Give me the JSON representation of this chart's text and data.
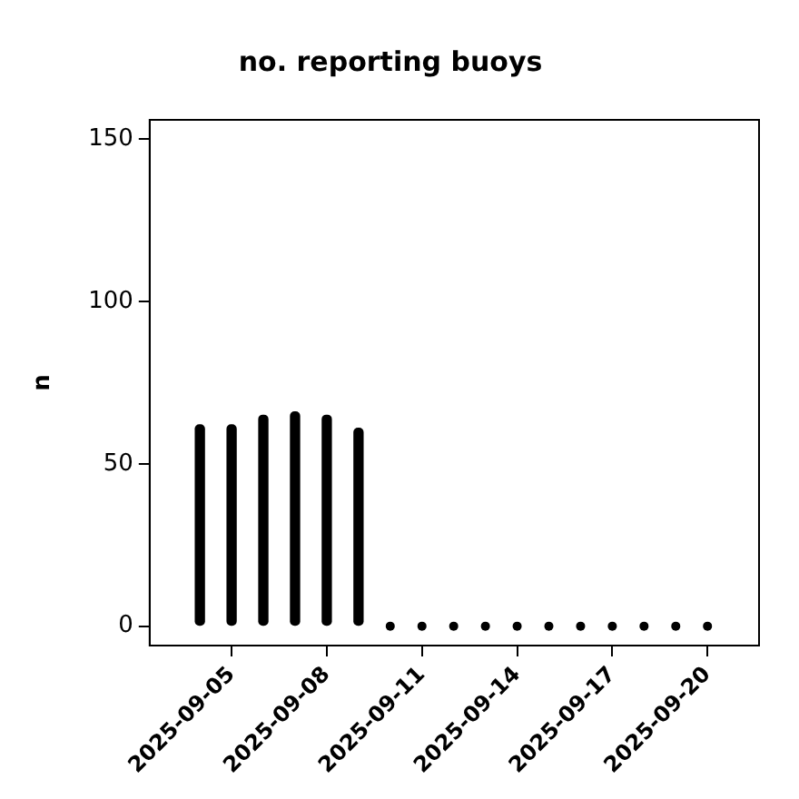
{
  "chart_data": {
    "type": "bar",
    "title": "no. reporting buoys",
    "ylabel": "n",
    "series": [
      {
        "color": "#000000",
        "x": [
          "2025-09-04",
          "2025-09-05",
          "2025-09-06",
          "2025-09-07",
          "2025-09-08",
          "2025-09-09"
        ],
        "values": [
          62,
          62,
          65,
          66,
          65,
          61
        ]
      },
      {
        "type": "scatter",
        "color": "#000000",
        "marker": "circle",
        "x": [
          "2025-09-10",
          "2025-09-11",
          "2025-09-12",
          "2025-09-13",
          "2025-09-14",
          "2025-09-15",
          "2025-09-16",
          "2025-09-17",
          "2025-09-18",
          "2025-09-19",
          "2025-09-20"
        ],
        "values": [
          0,
          0,
          0,
          0,
          0,
          0,
          0,
          0,
          0,
          0,
          0
        ]
      }
    ],
    "xlim": [
      "2025-09-02T10:00",
      "2025-09-21T15:00"
    ],
    "xticks": [
      {
        "value": "2025-09-05",
        "label": "2025-09-05"
      },
      {
        "value": "2025-09-08",
        "label": "2025-09-08"
      },
      {
        "value": "2025-09-11",
        "label": "2025-09-11"
      },
      {
        "value": "2025-09-14",
        "label": "2025-09-14"
      },
      {
        "value": "2025-09-17",
        "label": "2025-09-17"
      },
      {
        "value": "2025-09-20",
        "label": "2025-09-20"
      }
    ],
    "ylim": [
      -6,
      156
    ],
    "yticks": [
      0,
      50,
      100,
      150
    ],
    "grid": false,
    "legend": false
  }
}
